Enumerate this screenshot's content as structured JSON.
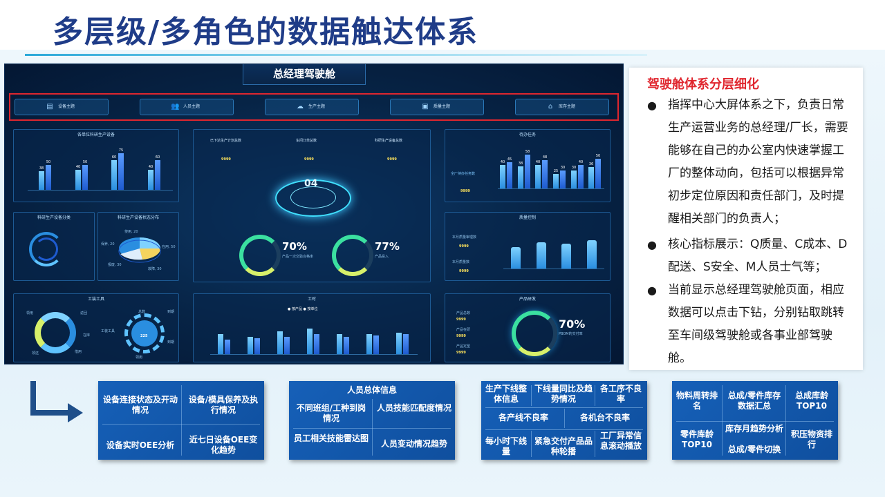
{
  "slide": {
    "title": "多层级/多角色的数据触达体系"
  },
  "dashboard": {
    "title": "总经理驾驶舱",
    "tabs": [
      {
        "label": "设备主题",
        "icon": "list-icon"
      },
      {
        "label": "人员主题",
        "icon": "users-icon"
      },
      {
        "label": "生产主题",
        "icon": "cloud-icon"
      },
      {
        "label": "质量主题",
        "icon": "document-icon"
      },
      {
        "label": "库存主题",
        "icon": "warehouse-icon"
      }
    ],
    "panels": {
      "device_prod": {
        "title": "各单位科研生产设备",
        "bars": [
          {
            "a": 38,
            "b": 50
          },
          {
            "a": 40,
            "b": 50
          },
          {
            "a": 60,
            "b": 75
          },
          {
            "a": 40,
            "b": 60
          }
        ]
      },
      "device_cat": {
        "title": "科研生产设备分类"
      },
      "device_dist": {
        "title": "科研生产设备状态分布",
        "labels": [
          "使用, 20",
          "保养, 20",
          "在用, 50",
          "报废, 30",
          "故障, 30"
        ]
      },
      "tools": {
        "title": "工装工具",
        "left_labels": [
          "领用",
          "返回",
          "在库",
          "借用",
          "领还"
        ],
        "right_labels": [
          "到期",
          "工装工具",
          "总数",
          "到期",
          "领用"
        ],
        "center_value": "225"
      },
      "center": {
        "stats": [
          {
            "label": "已下达生产计划总数",
            "value": "9999"
          },
          {
            "label": "车间订单总数",
            "value": "9999"
          },
          {
            "label": "科研生产设备总数",
            "value": "9999"
          }
        ],
        "ring_value": "04",
        "gauge1": {
          "pct": "70%",
          "label": "产品一次交验合格率"
        },
        "gauge2": {
          "pct": "77%",
          "label": "产品投入"
        }
      },
      "work_hours": {
        "title": "工时",
        "legend": [
          "按产品",
          "按单位"
        ],
        "bars": [
          {
            "a": 30,
            "b": 22
          },
          {
            "a": 26,
            "b": 24
          },
          {
            "a": 34,
            "b": 26
          },
          {
            "a": 38,
            "b": 30
          },
          {
            "a": 30,
            "b": 26
          },
          {
            "a": 30,
            "b": 28
          },
          {
            "a": 32,
            "b": 30
          }
        ]
      },
      "todo": {
        "title": "待办任务",
        "side_label": "全厂待办任务数",
        "side_value": "9999",
        "bars": [
          {
            "a": 40,
            "b": 45
          },
          {
            "a": 38,
            "b": 58
          },
          {
            "a": 40,
            "b": 48
          },
          {
            "a": 25,
            "b": 30
          },
          {
            "a": 30,
            "b": 40
          },
          {
            "a": 36,
            "b": 50
          }
        ]
      },
      "quality": {
        "title": "质量控制",
        "items": [
          {
            "label": "本月质量审理数",
            "value": "9999"
          },
          {
            "label": "本月质量数",
            "value": "9999"
          }
        ],
        "bars": [
          26,
          32,
          30,
          34
        ]
      },
      "product_dev": {
        "title": "产品研发",
        "items": [
          {
            "label": "产品总数",
            "value": "9999"
          },
          {
            "label": "产品在研",
            "value": "9999"
          },
          {
            "label": "产品定型",
            "value": "9999"
          }
        ],
        "gauge": {
          "pct": "70%",
          "label": "PBOM的交付率"
        }
      }
    }
  },
  "side_panel": {
    "heading": "驾驶舱体系分层细化",
    "bullets": [
      "指挥中心大屏体系之下，负责日常生产运营业务的总经理/厂长，需要能够在自己的办公室内快速掌握工厂的整体动向，包括可以根据异常初步定位原因和责任部门，及时提醒相关部门的负责人；",
      "核心指标展示：Q质量、C成本、D配送、S安全、M人员士气等；",
      "当前显示总经理驾驶舱页面，相应数据可以点击下钻，分别钻取跳转至车间级驾驶舱或各事业部驾驶舱。"
    ]
  },
  "cards": {
    "device": [
      "设备连接状态及开动情况",
      "设备/模具保养及执行情况",
      "设备实时OEE分析",
      "近七日设备OEE变化趋势"
    ],
    "personnel": {
      "header": "人员总体信息",
      "items": [
        "不同班组/工种到岗情况",
        "人员技能匹配度情况",
        "员工相关技能雷达图",
        "人员变动情况趋势"
      ]
    },
    "production": [
      "生产下线整体信息",
      "下线量同比及趋势情况",
      "各工序不良率",
      "各产线不良率",
      "各机台不良率",
      "每小时下线量",
      "紧急交付产品品种轮播",
      "工厂异常信息滚动播放"
    ],
    "inventory": [
      "物料周转排名",
      "总成/零件库存数据汇总",
      "总成库龄TOP10",
      "零件库龄TOP10",
      "库存月趋势分析",
      "总成/零件切换",
      "积压物资排行"
    ]
  }
}
